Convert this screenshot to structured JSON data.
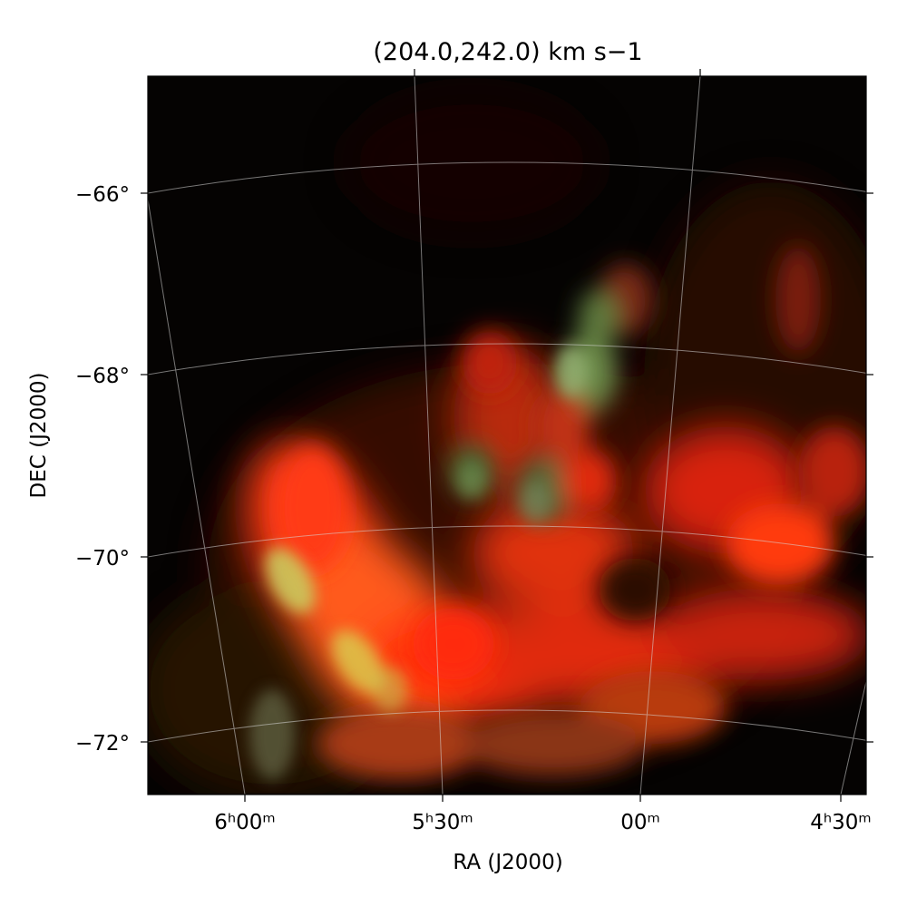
{
  "figure": {
    "title": "(204.0,242.0) km s−1",
    "xlabel": "RA (J2000)",
    "ylabel": "DEC (J2000)",
    "x_ticks": [
      {
        "label": "6ʰ00ᵐ"
      },
      {
        "label": "5ʰ30ᵐ"
      },
      {
        "label": "00ᵐ"
      },
      {
        "label": "4ʰ30ᵐ"
      }
    ],
    "y_ticks": [
      {
        "label": "−66°"
      },
      {
        "label": "−68°"
      },
      {
        "label": "−70°"
      },
      {
        "label": "−72°"
      }
    ],
    "grid": true,
    "colors": {
      "background": "#050302",
      "emission_red": "#ff2a10",
      "emission_orange": "#ff5a1a",
      "emission_green": "#b8e060",
      "grid": "#d8d8d8"
    }
  }
}
